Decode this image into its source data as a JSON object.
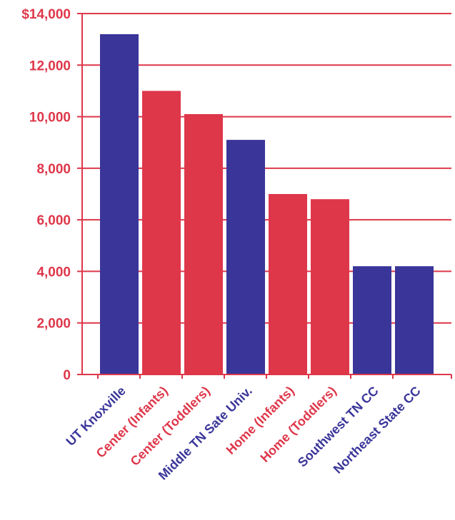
{
  "chart_data": {
    "type": "bar",
    "title": "",
    "xlabel": "",
    "ylabel": "",
    "categories": [
      "UT Knoxville",
      "Center (Infants)",
      "Center (Toddlers)",
      "Middle TN Sate Univ.",
      "Home (Infants)",
      "Home (Toddlers)",
      "Southwest TN CC",
      "Northeast State CC"
    ],
    "values": [
      13200,
      11000,
      10100,
      9100,
      7000,
      6800,
      4200,
      4200
    ],
    "bar_colors": [
      "#3a3599",
      "#de374a",
      "#de374a",
      "#3a3599",
      "#de374a",
      "#de374a",
      "#3a3599",
      "#3a3599"
    ],
    "label_colors": [
      "#3a3599",
      "#de374a",
      "#de374a",
      "#3a3599",
      "#de374a",
      "#de374a",
      "#3a3599",
      "#3a3599"
    ],
    "ylim": [
      0,
      14000
    ],
    "y_ticks": [
      0,
      2000,
      4000,
      6000,
      8000,
      10000,
      12000,
      14000
    ],
    "y_tick_labels": [
      "0",
      "2,000",
      "4,000",
      "6,000",
      "8,000",
      "10,000",
      "12,000",
      "$14,000"
    ],
    "grid": true,
    "colors": {
      "axis": "#de374a",
      "grid": "#de374a",
      "tick_text": "#de374a"
    }
  }
}
